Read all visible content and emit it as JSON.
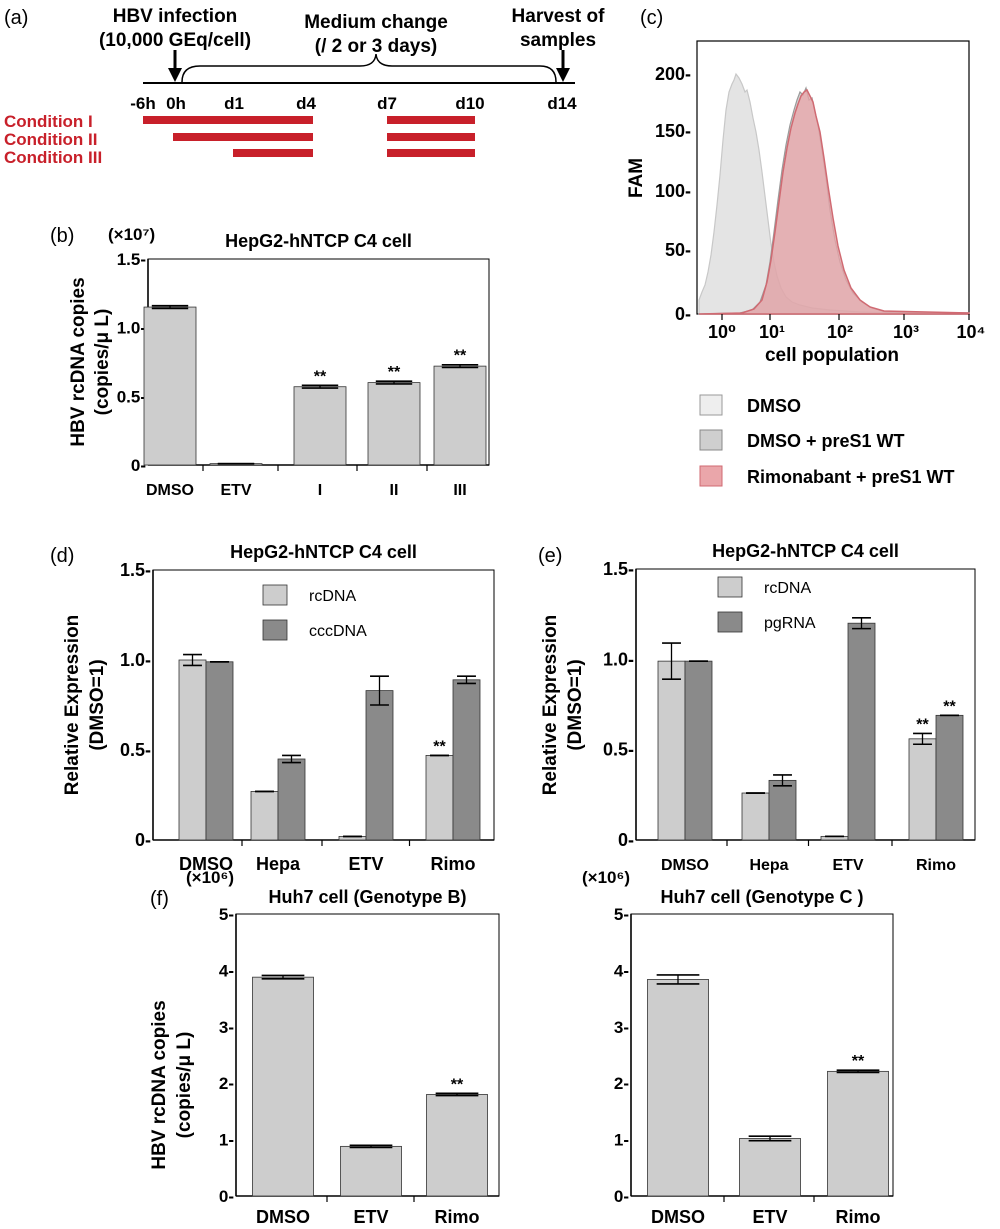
{
  "colors": {
    "light_bar": "#cdcdcd",
    "dark_bar": "#8a8a8a",
    "red": "#c8202a",
    "hist_grey": "#dcdcdc",
    "hist_rimo": "#e8a4a8",
    "hist_rimo_stroke": "#d06a72",
    "hist_mid": "#bfbfbf",
    "axis": "#000000"
  },
  "panel_a": {
    "label": "(a)",
    "event1": [
      "HBV infection",
      "(10,000 GEq/cell)"
    ],
    "event2": [
      "Medium change",
      "(/ 2 or 3 days)"
    ],
    "event3": [
      "Harvest of",
      "samples"
    ],
    "ticks": [
      "-6h",
      "0h",
      "d1",
      "d4",
      "d7",
      "d10",
      "d14"
    ],
    "conditions": [
      "Condition I",
      "Condition II",
      "Condition III"
    ]
  },
  "chart_data": [
    {
      "id": "b",
      "type": "bar",
      "label": "(b)",
      "title": "HepG2-hNTCP C4 cell",
      "multiplier": "(×10⁷)",
      "ylabel": [
        "HBV rcDNA copies",
        "(copies/μ L)"
      ],
      "ylim": [
        0,
        1.5
      ],
      "yticks": [
        "0-",
        "0.5-",
        "1.0-",
        "1.5-"
      ],
      "categories": [
        "DMSO",
        "ETV",
        "I",
        "II",
        "III"
      ],
      "series": [
        {
          "values": [
            1.15,
            0.01,
            0.57,
            0.6,
            0.72
          ],
          "errors": [
            0.01,
            0.0,
            0.01,
            0.01,
            0.01
          ],
          "sig": [
            "",
            "",
            "**",
            "**",
            "**"
          ]
        }
      ]
    },
    {
      "id": "c",
      "type": "area",
      "label": "(c)",
      "xlabel": "cell population",
      "ylabel": "FAM",
      "xscale": "log",
      "xticks": [
        "10⁰",
        "10¹",
        "10²",
        "10³",
        "10⁴"
      ],
      "ylim": [
        0,
        200
      ],
      "yticks": [
        "0-",
        "50-",
        "100-",
        "150-",
        "200-"
      ],
      "legend": [
        "DMSO",
        "DMSO + preS1 WT",
        "Rimonabant + preS1 WT"
      ]
    },
    {
      "id": "d",
      "type": "bar",
      "label": "(d)",
      "title": "HepG2-hNTCP C4 cell",
      "ylabel": [
        "Relative Expression",
        "(DMSO=1)"
      ],
      "ylim": [
        0,
        1.5
      ],
      "yticks": [
        "0-",
        "0.5-",
        "1.0-",
        "1.5-"
      ],
      "categories": [
        "DMSO",
        "Hepa",
        "ETV",
        "Rimo"
      ],
      "series": [
        {
          "name": "rcDNA",
          "values": [
            1.0,
            0.27,
            0.02,
            0.47
          ],
          "errors": [
            0.03,
            0.0,
            0.0,
            0.0
          ],
          "sig": [
            "",
            "",
            "",
            "**"
          ]
        },
        {
          "name": "cccDNA",
          "values": [
            0.99,
            0.45,
            0.83,
            0.89
          ],
          "errors": [
            0.0,
            0.02,
            0.08,
            0.02
          ],
          "sig": [
            "",
            "",
            "",
            ""
          ]
        }
      ]
    },
    {
      "id": "e",
      "type": "bar",
      "label": "(e)",
      "title": "HepG2-hNTCP C4 cell",
      "ylabel": [
        "Relative Expression",
        "(DMSO=1)"
      ],
      "ylim": [
        0,
        1.5
      ],
      "yticks": [
        "0-",
        "0.5-",
        "1.0-",
        "1.5-"
      ],
      "categories": [
        "DMSO",
        "Hepa",
        "ETV",
        "Rimo"
      ],
      "series": [
        {
          "name": "rcDNA",
          "values": [
            0.99,
            0.26,
            0.02,
            0.56
          ],
          "errors": [
            0.1,
            0.0,
            0.0,
            0.03
          ],
          "sig": [
            "",
            "",
            "",
            "**"
          ]
        },
        {
          "name": "pgRNA",
          "values": [
            0.99,
            0.33,
            1.2,
            0.69
          ],
          "errors": [
            0.0,
            0.03,
            0.03,
            0.0
          ],
          "sig": [
            "",
            "",
            "",
            "**"
          ]
        }
      ]
    },
    {
      "id": "f1",
      "type": "bar",
      "label": "(f)",
      "title": "Huh7 cell (Genotype B)",
      "multiplier": "(×10⁶)",
      "ylabel": [
        "HBV rcDNA copies",
        "(copies/μ L)"
      ],
      "ylim": [
        0,
        5
      ],
      "yticks": [
        "0-",
        "1-",
        "2-",
        "3-",
        "4-",
        "5-"
      ],
      "categories": [
        "DMSO",
        "ETV",
        "Rimo"
      ],
      "series": [
        {
          "values": [
            3.88,
            0.88,
            1.8
          ],
          "errors": [
            0.03,
            0.02,
            0.02
          ],
          "sig": [
            "",
            "",
            "**"
          ]
        }
      ]
    },
    {
      "id": "f2",
      "type": "bar",
      "label": "",
      "title": "Huh7 cell (Genotype C )",
      "multiplier": "(×10⁶)",
      "ylabel": [
        "",
        ""
      ],
      "ylim": [
        0,
        5
      ],
      "yticks": [
        "0-",
        "1-",
        "2-",
        "3-",
        "4-",
        "5-"
      ],
      "categories": [
        "DMSO",
        "ETV",
        "Rimo"
      ],
      "series": [
        {
          "values": [
            3.84,
            1.02,
            2.21
          ],
          "errors": [
            0.08,
            0.04,
            0.02
          ],
          "sig": [
            "",
            "",
            "**"
          ]
        }
      ]
    }
  ]
}
